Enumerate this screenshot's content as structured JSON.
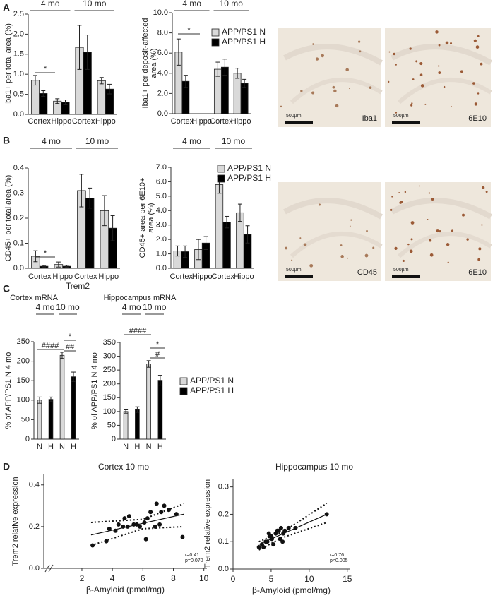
{
  "panels": [
    "A",
    "B",
    "C",
    "D"
  ],
  "images": [
    {
      "scale_bar": "500µm",
      "label": "Iba1"
    },
    {
      "scale_bar": "500µm",
      "label": "6E10"
    },
    {
      "scale_bar": "500µm",
      "label": "CD45"
    },
    {
      "scale_bar": "500µm",
      "label": "6E10"
    }
  ],
  "chart_data": [
    {
      "type": "bar",
      "ylabel": "Iba1+ per total area (%)",
      "groups": [
        "4 mo",
        "10 mo"
      ],
      "categories": [
        "Cortex",
        "Hippo",
        "Cortex",
        "Hippo"
      ],
      "series": [
        {
          "color": "#d9d9d9",
          "values": [
            0.85,
            0.33,
            1.67,
            0.84
          ],
          "errors": [
            0.12,
            0.06,
            0.55,
            0.08
          ]
        },
        {
          "color": "#000000",
          "values": [
            0.52,
            0.3,
            1.55,
            0.63
          ],
          "errors": [
            0.07,
            0.06,
            0.43,
            0.12
          ]
        }
      ],
      "ylim": [
        0,
        2.5
      ],
      "yticks": [
        {
          "value": 0,
          "label": "0.0"
        },
        0.5,
        {
          "value": 1,
          "label": "1.0"
        },
        1.5,
        {
          "value": 2,
          "label": "2.0"
        },
        2.5
      ],
      "annotations": [
        "*"
      ]
    },
    {
      "type": "bar",
      "ylabel": [
        "Iba1+ per deposit-affected",
        "area (%)"
      ],
      "groups": [
        "4 mo",
        "10 mo"
      ],
      "categories": [
        "Cortex",
        "Hippo",
        "Cortex",
        "Hippo"
      ],
      "series": [
        {
          "name": "APP/PS1 N",
          "color": "#d9d9d9",
          "values": [
            6.1,
            0,
            4.4,
            4.0
          ],
          "errors": [
            1.3,
            null,
            0.7,
            0.5
          ]
        },
        {
          "name": "APP/PS1 H",
          "color": "#000000",
          "values": [
            3.2,
            0,
            4.6,
            3.0
          ],
          "errors": [
            0.6,
            null,
            0.8,
            0.4
          ]
        }
      ],
      "ylim": [
        0,
        10
      ],
      "yticks": [
        {
          "value": 0,
          "label": "0.0"
        },
        {
          "value": 2,
          "label": "2.0"
        },
        {
          "value": 4,
          "label": "4.0"
        },
        {
          "value": 6,
          "label": "6.0"
        },
        {
          "value": 8,
          "label": "8.0"
        },
        {
          "value": 10,
          "label": "10.0"
        }
      ],
      "annotations": [
        "*"
      ],
      "legend": true
    },
    {
      "type": "bar",
      "ylabel": "CD45+ per total area (%)",
      "groups": [
        "4 mo",
        "10 mo"
      ],
      "categories": [
        "Cortex",
        "Hippo",
        "Cortex",
        "Hippo"
      ],
      "series": [
        {
          "color": "#d9d9d9",
          "values": [
            0.048,
            0.015,
            0.31,
            0.23
          ],
          "errors": [
            0.022,
            0.01,
            0.065,
            0.06
          ]
        },
        {
          "color": "#000000",
          "values": [
            0.008,
            0.008,
            0.28,
            0.16
          ],
          "errors": [
            0.003,
            0.004,
            0.04,
            0.05
          ]
        }
      ],
      "ylim": [
        0,
        0.4
      ],
      "yticks": [
        {
          "value": 0,
          "label": "0.0"
        },
        0.1,
        0.2,
        0.3,
        0.4
      ],
      "annotations": [
        "*"
      ]
    },
    {
      "type": "bar",
      "ylabel": [
        "CD45+ area per 6E10+",
        "area (%)"
      ],
      "groups": [
        "4 mo",
        "10 mo"
      ],
      "categories": [
        "Cortex",
        "Hippo",
        "Cortex",
        "Hippo"
      ],
      "series": [
        {
          "name": "APP/PS1 N",
          "color": "#d9d9d9",
          "values": [
            1.2,
            1.3,
            5.8,
            3.85
          ],
          "errors": [
            0.35,
            0.7,
            0.6,
            0.6
          ]
        },
        {
          "name": "APP/PS1 H",
          "color": "#000000",
          "values": [
            1.15,
            1.75,
            3.2,
            2.35
          ],
          "errors": [
            0.4,
            0.45,
            0.4,
            0.6
          ]
        }
      ],
      "ylim": [
        0,
        7
      ],
      "yticks": [
        {
          "value": 0,
          "label": "0.0"
        },
        {
          "value": 1,
          "label": "1.0"
        },
        {
          "value": 2,
          "label": "2.0"
        },
        {
          "value": 3,
          "label": "3.0"
        },
        {
          "value": 4,
          "label": "4.0"
        },
        {
          "value": 5,
          "label": "5.0"
        },
        {
          "value": 6,
          "label": "6.0"
        },
        {
          "value": 7,
          "label": "7.0"
        }
      ],
      "legend": true
    },
    {
      "type": "bar",
      "suptitle": "Trem2",
      "title": "Cortex mRNA",
      "ylabel": "% of APP/PS1 N 4 mo",
      "groups": [
        "4 mo",
        "10 mo"
      ],
      "categories": [
        "N",
        "H",
        "N",
        "H"
      ],
      "series": [
        {
          "color": "#d9d9d9",
          "values": [
            100,
            null,
            215,
            null
          ],
          "errors": [
            8,
            null,
            8,
            null
          ]
        },
        {
          "color": "#000000",
          "values": [
            null,
            102,
            null,
            160
          ],
          "errors": [
            null,
            6,
            null,
            12
          ]
        }
      ],
      "ylim": [
        0,
        250
      ],
      "yticks": [
        0,
        50,
        100,
        150,
        200,
        250
      ],
      "annotations": [
        "####",
        "*",
        "##"
      ]
    },
    {
      "type": "bar",
      "title": "Hippocampus mRNA",
      "ylabel": "% of APP/PS1 N 4 mo",
      "groups": [
        "4 mo",
        "10 mo"
      ],
      "categories": [
        "N",
        "H",
        "N",
        "H"
      ],
      "series": [
        {
          "name": "APP/PS1 N",
          "color": "#d9d9d9",
          "values": [
            100,
            null,
            272,
            null
          ],
          "errors": [
            6,
            null,
            12,
            null
          ]
        },
        {
          "name": "APP/PS1 H",
          "color": "#000000",
          "values": [
            null,
            107,
            null,
            213
          ],
          "errors": [
            null,
            10,
            null,
            18
          ]
        }
      ],
      "ylim": [
        0,
        350
      ],
      "yticks": [
        0,
        50,
        100,
        150,
        200,
        250,
        300,
        350
      ],
      "annotations": [
        "####",
        "*",
        "#"
      ],
      "legend": true
    },
    {
      "type": "scatter",
      "title": "Cortex 10 mo",
      "xlabel": "β-Amyloid (pmol/mg)",
      "ylabel": "Trem2 relative expression",
      "x": [
        2.7,
        3.6,
        3.8,
        4.2,
        4.4,
        4.7,
        4.8,
        5.0,
        5.1,
        5.4,
        5.6,
        5.8,
        6.1,
        6.2,
        6.3,
        6.5,
        6.8,
        6.9,
        7.1,
        7.2,
        7.4,
        7.7,
        8.2,
        8.6
      ],
      "values": [
        0.11,
        0.13,
        0.19,
        0.18,
        0.21,
        0.2,
        0.24,
        0.2,
        0.25,
        0.21,
        0.21,
        0.2,
        0.22,
        0.14,
        0.24,
        0.27,
        0.2,
        0.31,
        0.21,
        0.27,
        0.3,
        0.28,
        0.26,
        0.15
      ],
      "fit": {
        "x": [
          2.6,
          8.7
        ],
        "y": [
          0.16,
          0.26
        ]
      },
      "ci": {
        "x": [
          2.6,
          6,
          8.7
        ],
        "upper": [
          0.22,
          0.235,
          0.31
        ],
        "lower": [
          0.11,
          0.19,
          0.2
        ]
      },
      "xlim": [
        -0.5,
        10.2
      ],
      "xticks": [
        2,
        4,
        6,
        8,
        10
      ],
      "ylim": [
        0,
        0.45
      ],
      "yticks": [
        {
          "value": 0,
          "label": "0.0"
        },
        0.2,
        0.4
      ],
      "stats": [
        "r=0.41",
        "p=0.070"
      ]
    },
    {
      "type": "scatter",
      "title": "Hippocampus 10 mo",
      "xlabel": "β-Amyloid (pmol/mg)",
      "ylabel": "Trem2 relative expression",
      "x": [
        3.4,
        3.8,
        4.0,
        4.3,
        4.5,
        4.7,
        4.8,
        5.0,
        5.1,
        5.3,
        5.6,
        5.8,
        6.0,
        6.2,
        6.3,
        6.5,
        6.6,
        6.8,
        7.3,
        8.2,
        12.3
      ],
      "values": [
        0.08,
        0.09,
        0.08,
        0.1,
        0.1,
        0.13,
        0.12,
        0.12,
        0.11,
        0.09,
        0.13,
        0.14,
        0.14,
        0.11,
        0.15,
        0.1,
        0.13,
        0.14,
        0.15,
        0.15,
        0.2
      ],
      "fit": {
        "x": [
          3.4,
          12.3
        ],
        "y": [
          0.09,
          0.2
        ]
      },
      "ci": {
        "x": [
          3.4,
          6.5,
          12.3
        ],
        "upper": [
          0.1,
          0.135,
          0.24
        ],
        "lower": [
          0.07,
          0.115,
          0.17
        ]
      },
      "xlim": [
        0,
        15.3
      ],
      "xticks": [
        0,
        5,
        10,
        15
      ],
      "ylim": [
        0,
        0.33
      ],
      "yticks": [
        {
          "value": 0,
          "label": "0.0"
        },
        0.1,
        0.2,
        0.3
      ],
      "stats": [
        "r=0.76",
        "p<0.005"
      ]
    }
  ]
}
